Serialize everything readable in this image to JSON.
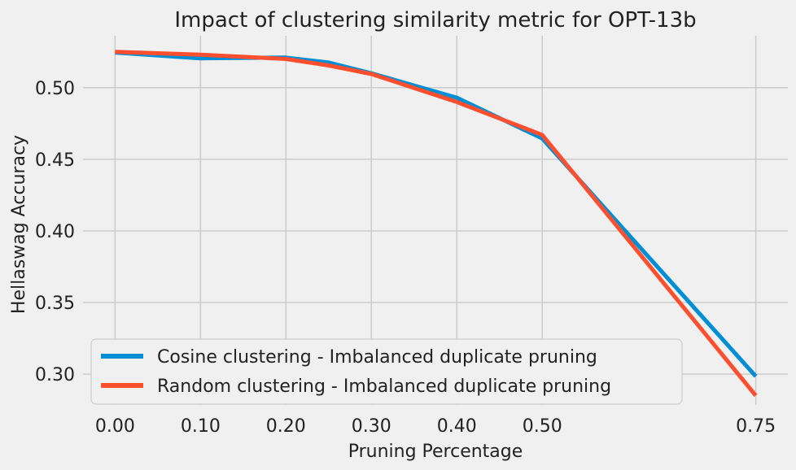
{
  "chart_data": {
    "type": "line",
    "title": "Impact of clustering similarity metric for OPT-13b",
    "xlabel": "Pruning Percentage",
    "ylabel": "Hellaswag Accuracy",
    "xlim": [
      -0.0375,
      0.7875
    ],
    "ylim": [
      0.2785,
      0.5362
    ],
    "xticks": [
      0.0,
      0.1,
      0.2,
      0.3,
      0.4,
      0.5,
      0.75
    ],
    "xtick_labels": [
      "0.00",
      "0.10",
      "0.20",
      "0.30",
      "0.40",
      "0.50",
      "0.75"
    ],
    "yticks": [
      0.3,
      0.35,
      0.4,
      0.45,
      0.5
    ],
    "ytick_labels": [
      "0.30",
      "0.35",
      "0.40",
      "0.45",
      "0.50"
    ],
    "grid": true,
    "legend_position": "lower-left",
    "series": [
      {
        "name": "Cosine clustering - Imbalanced duplicate pruning",
        "color": "#008fd5",
        "x": [
          0.0,
          0.1,
          0.2,
          0.25,
          0.3,
          0.4,
          0.5,
          0.75
        ],
        "y": [
          0.5245,
          0.5205,
          0.521,
          0.5175,
          0.51,
          0.493,
          0.4645,
          0.2985
        ]
      },
      {
        "name": "Random clustering - Imbalanced duplicate pruning",
        "color": "#fc4f30",
        "x": [
          0.0,
          0.1,
          0.2,
          0.25,
          0.3,
          0.4,
          0.5,
          0.75
        ],
        "y": [
          0.525,
          0.523,
          0.52,
          0.5155,
          0.5095,
          0.49,
          0.467,
          0.285
        ]
      }
    ]
  }
}
